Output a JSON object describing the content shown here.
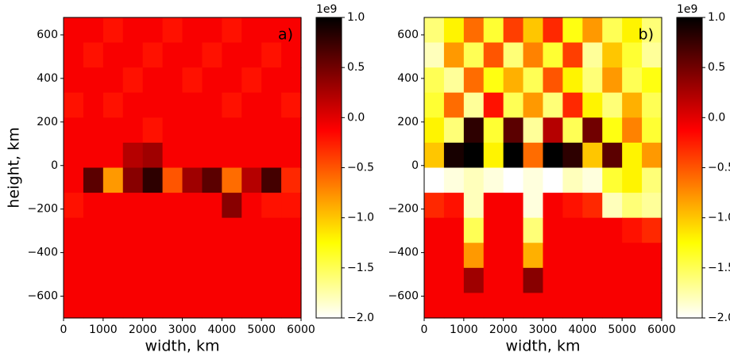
{
  "chart_data": [
    {
      "type": "heatmap",
      "annotation": "a)",
      "xlabel": "width, km",
      "ylabel": "height, km",
      "xlim": [
        0,
        6000
      ],
      "xticks": [
        0,
        1000,
        2000,
        3000,
        4000,
        5000,
        6000
      ],
      "ylim": [
        -700,
        680
      ],
      "yticks": [
        {
          "value": -600,
          "label": "−600"
        },
        {
          "value": -400,
          "label": "−400"
        },
        {
          "value": -200,
          "label": "−200"
        },
        0,
        200,
        400,
        600
      ],
      "colormap": "hot_r",
      "colorbar": {
        "lim": [
          -2,
          1
        ],
        "offset_label": "1e9",
        "ticks": [
          {
            "value": 1,
            "label": "1.0"
          },
          0.5,
          {
            "value": 0,
            "label": "0.0"
          },
          {
            "value": -0.5,
            "label": "−0.5"
          },
          {
            "value": -1,
            "label": "−1.0"
          },
          {
            "value": -1.5,
            "label": "−1.5"
          },
          {
            "value": -2,
            "label": "−2.0"
          }
        ]
      },
      "z": [
        [
          -0.1,
          -0.1,
          -0.2,
          -0.1,
          -0.1,
          -0.2,
          -0.1,
          -0.1,
          -0.2,
          -0.1,
          -0.1,
          -0.1
        ],
        [
          -0.1,
          -0.2,
          -0.1,
          -0.1,
          -0.2,
          -0.1,
          -0.1,
          -0.2,
          -0.1,
          -0.1,
          -0.2,
          -0.1
        ],
        [
          -0.1,
          -0.1,
          -0.1,
          -0.2,
          -0.1,
          -0.1,
          -0.2,
          -0.1,
          -0.1,
          -0.2,
          -0.1,
          -0.1
        ],
        [
          -0.2,
          -0.1,
          -0.2,
          -0.1,
          -0.1,
          -0.1,
          -0.1,
          -0.1,
          -0.2,
          -0.1,
          -0.1,
          -0.2
        ],
        [
          -0.1,
          -0.1,
          -0.1,
          -0.1,
          -0.2,
          -0.1,
          -0.1,
          -0.1,
          -0.1,
          -0.1,
          -0.1,
          -0.1
        ],
        [
          -0.1,
          -0.1,
          -0.1,
          0.2,
          0.3,
          -0.1,
          -0.1,
          -0.1,
          -0.1,
          -0.1,
          -0.1,
          -0.1
        ],
        [
          -0.1,
          0.6,
          -0.8,
          0.4,
          0.8,
          -0.5,
          0.3,
          0.6,
          -0.6,
          0.2,
          0.7,
          -0.3
        ],
        [
          -0.2,
          -0.1,
          -0.1,
          -0.1,
          -0.1,
          -0.1,
          -0.1,
          -0.1,
          0.4,
          -0.1,
          -0.2,
          -0.2
        ],
        [
          -0.1,
          -0.1,
          -0.1,
          -0.1,
          -0.1,
          -0.1,
          -0.1,
          -0.1,
          -0.1,
          -0.1,
          -0.1,
          -0.1
        ],
        [
          -0.1,
          -0.1,
          -0.1,
          -0.1,
          -0.1,
          -0.1,
          -0.1,
          -0.1,
          -0.1,
          -0.1,
          -0.1,
          -0.1
        ],
        [
          -0.1,
          -0.1,
          -0.1,
          -0.1,
          -0.1,
          -0.1,
          -0.1,
          -0.1,
          -0.1,
          -0.1,
          -0.1,
          -0.1
        ],
        [
          -0.1,
          -0.1,
          -0.1,
          -0.1,
          -0.1,
          -0.1,
          -0.1,
          -0.1,
          -0.1,
          -0.1,
          -0.1,
          -0.1
        ]
      ]
    },
    {
      "type": "heatmap",
      "annotation": "b)",
      "xlabel": "width, km",
      "xlim": [
        0,
        6000
      ],
      "xticks": [
        0,
        1000,
        2000,
        3000,
        4000,
        5000,
        6000
      ],
      "ylim": [
        -700,
        680
      ],
      "yticks": [
        {
          "value": -600,
          "label": "−600"
        },
        {
          "value": -400,
          "label": "−400"
        },
        {
          "value": -200,
          "label": "−200"
        },
        0,
        200,
        400,
        600
      ],
      "colormap": "hot_r",
      "colorbar": {
        "lim": [
          -2,
          1
        ],
        "offset_label": "1e9",
        "ticks": [
          {
            "value": 1,
            "label": "1.0"
          },
          0.5,
          {
            "value": 0,
            "label": "0.0"
          },
          {
            "value": -0.5,
            "label": "−0.5"
          },
          {
            "value": -1,
            "label": "−1.0"
          },
          {
            "value": -1.5,
            "label": "−1.5"
          },
          {
            "value": -2,
            "label": "−2.0"
          }
        ]
      },
      "z": [
        [
          -1.6,
          -1.2,
          -0.6,
          -1.4,
          -0.4,
          -1.0,
          -0.3,
          -1.3,
          -0.8,
          -1.5,
          -1.2,
          -1.6
        ],
        [
          -1.8,
          -0.8,
          -1.5,
          -0.5,
          -1.6,
          -0.7,
          -1.4,
          -0.4,
          -1.7,
          -1.0,
          -1.4,
          -1.7
        ],
        [
          -1.5,
          -1.7,
          -0.6,
          -1.3,
          -0.9,
          -1.5,
          -0.5,
          -1.2,
          -1.6,
          -0.8,
          -1.5,
          -1.3
        ],
        [
          -1.4,
          -0.6,
          -1.7,
          -0.2,
          -1.5,
          -0.8,
          -1.6,
          -0.3,
          -1.2,
          -1.6,
          -0.9,
          -1.5
        ],
        [
          -1.2,
          -1.6,
          0.8,
          -1.4,
          0.6,
          -1.7,
          0.2,
          -1.5,
          0.5,
          -1.3,
          -0.7,
          -1.4
        ],
        [
          -1.0,
          0.9,
          1.0,
          -1.2,
          1.0,
          -0.6,
          1.0,
          0.8,
          -1.0,
          0.6,
          -1.2,
          -0.8
        ],
        [
          -2.0,
          -1.9,
          -1.8,
          -1.9,
          -2.0,
          -1.9,
          -2.0,
          -1.8,
          -1.9,
          -1.4,
          -1.2,
          -1.6
        ],
        [
          -0.3,
          -0.2,
          -1.8,
          -0.1,
          -0.1,
          -1.9,
          -0.1,
          -0.2,
          -0.3,
          -1.8,
          -1.6,
          -1.7
        ],
        [
          -0.1,
          -0.1,
          -1.5,
          -0.1,
          -0.1,
          -1.6,
          -0.1,
          -0.1,
          -0.1,
          -0.1,
          -0.2,
          -0.3
        ],
        [
          -0.1,
          -0.1,
          -0.8,
          -0.1,
          -0.1,
          -0.9,
          -0.1,
          -0.1,
          -0.1,
          -0.1,
          -0.1,
          -0.1
        ],
        [
          -0.1,
          -0.1,
          0.3,
          -0.1,
          -0.1,
          0.4,
          -0.1,
          -0.1,
          -0.1,
          -0.1,
          -0.1,
          -0.1
        ],
        [
          -0.1,
          -0.1,
          -0.1,
          -0.1,
          -0.1,
          -0.1,
          -0.1,
          -0.1,
          -0.1,
          -0.1,
          -0.1,
          -0.1
        ]
      ]
    }
  ]
}
